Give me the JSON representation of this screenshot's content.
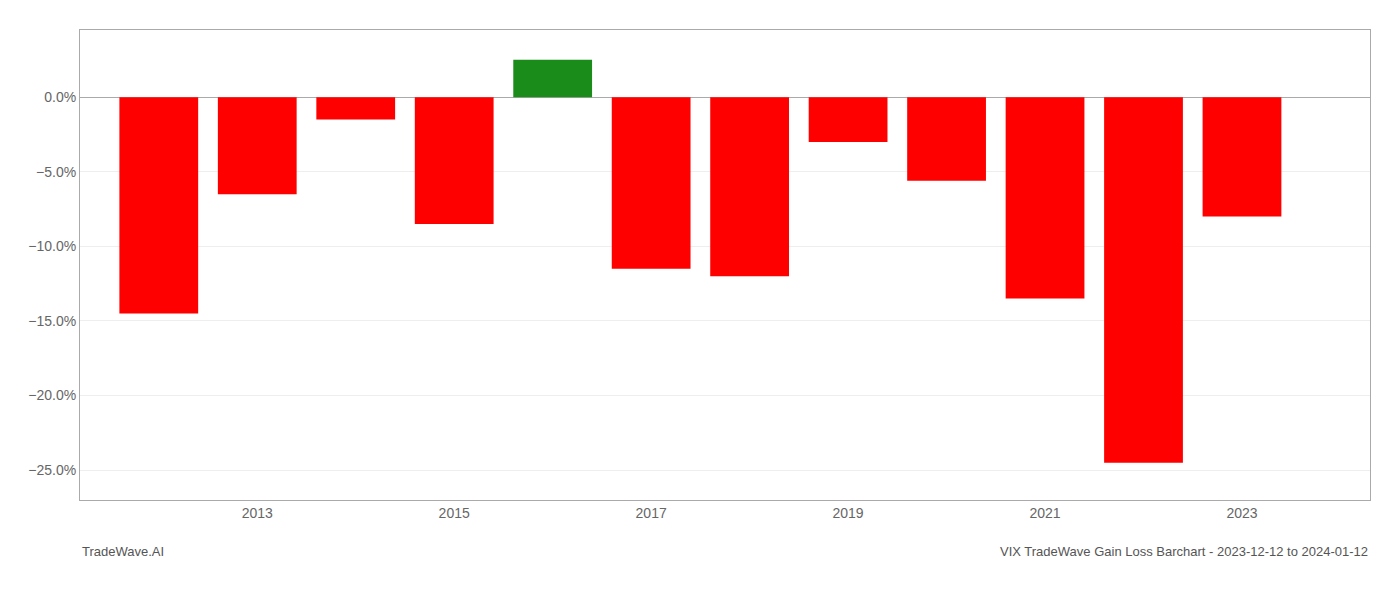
{
  "chart_data": {
    "type": "bar",
    "title": "VIX TradeWave Gain Loss Barchart - 2023-12-12 to 2024-01-12",
    "annotations": [
      "TradeWave.AI"
    ],
    "x": [
      2012,
      2013,
      2014,
      2015,
      2016,
      2017,
      2018,
      2019,
      2020,
      2021,
      2022,
      2023
    ],
    "values": [
      -0.145,
      -0.065,
      -0.015,
      -0.085,
      0.025,
      -0.115,
      -0.12,
      -0.03,
      -0.056,
      -0.135,
      -0.245,
      -0.08
    ],
    "colors": [
      "#ff0000",
      "#ff0000",
      "#ff0000",
      "#ff0000",
      "#1a8c1a",
      "#ff0000",
      "#ff0000",
      "#ff0000",
      "#ff0000",
      "#ff0000",
      "#ff0000",
      "#ff0000"
    ],
    "xlim": [
      2011.2,
      2024.3
    ],
    "xticks": [
      2013,
      2015,
      2017,
      2019,
      2021,
      2023
    ],
    "ylim": [
      -0.27,
      0.045
    ],
    "yticks": [
      {
        "value": 0.0,
        "label": "0.0%"
      },
      {
        "value": -0.05,
        "label": "−5.0%"
      },
      {
        "value": -0.1,
        "label": "−10.0%"
      },
      {
        "value": -0.15,
        "label": "−15.0%"
      },
      {
        "value": -0.2,
        "label": "−20.0%"
      },
      {
        "value": -0.25,
        "label": "−25.0%"
      }
    ],
    "grid": true
  }
}
